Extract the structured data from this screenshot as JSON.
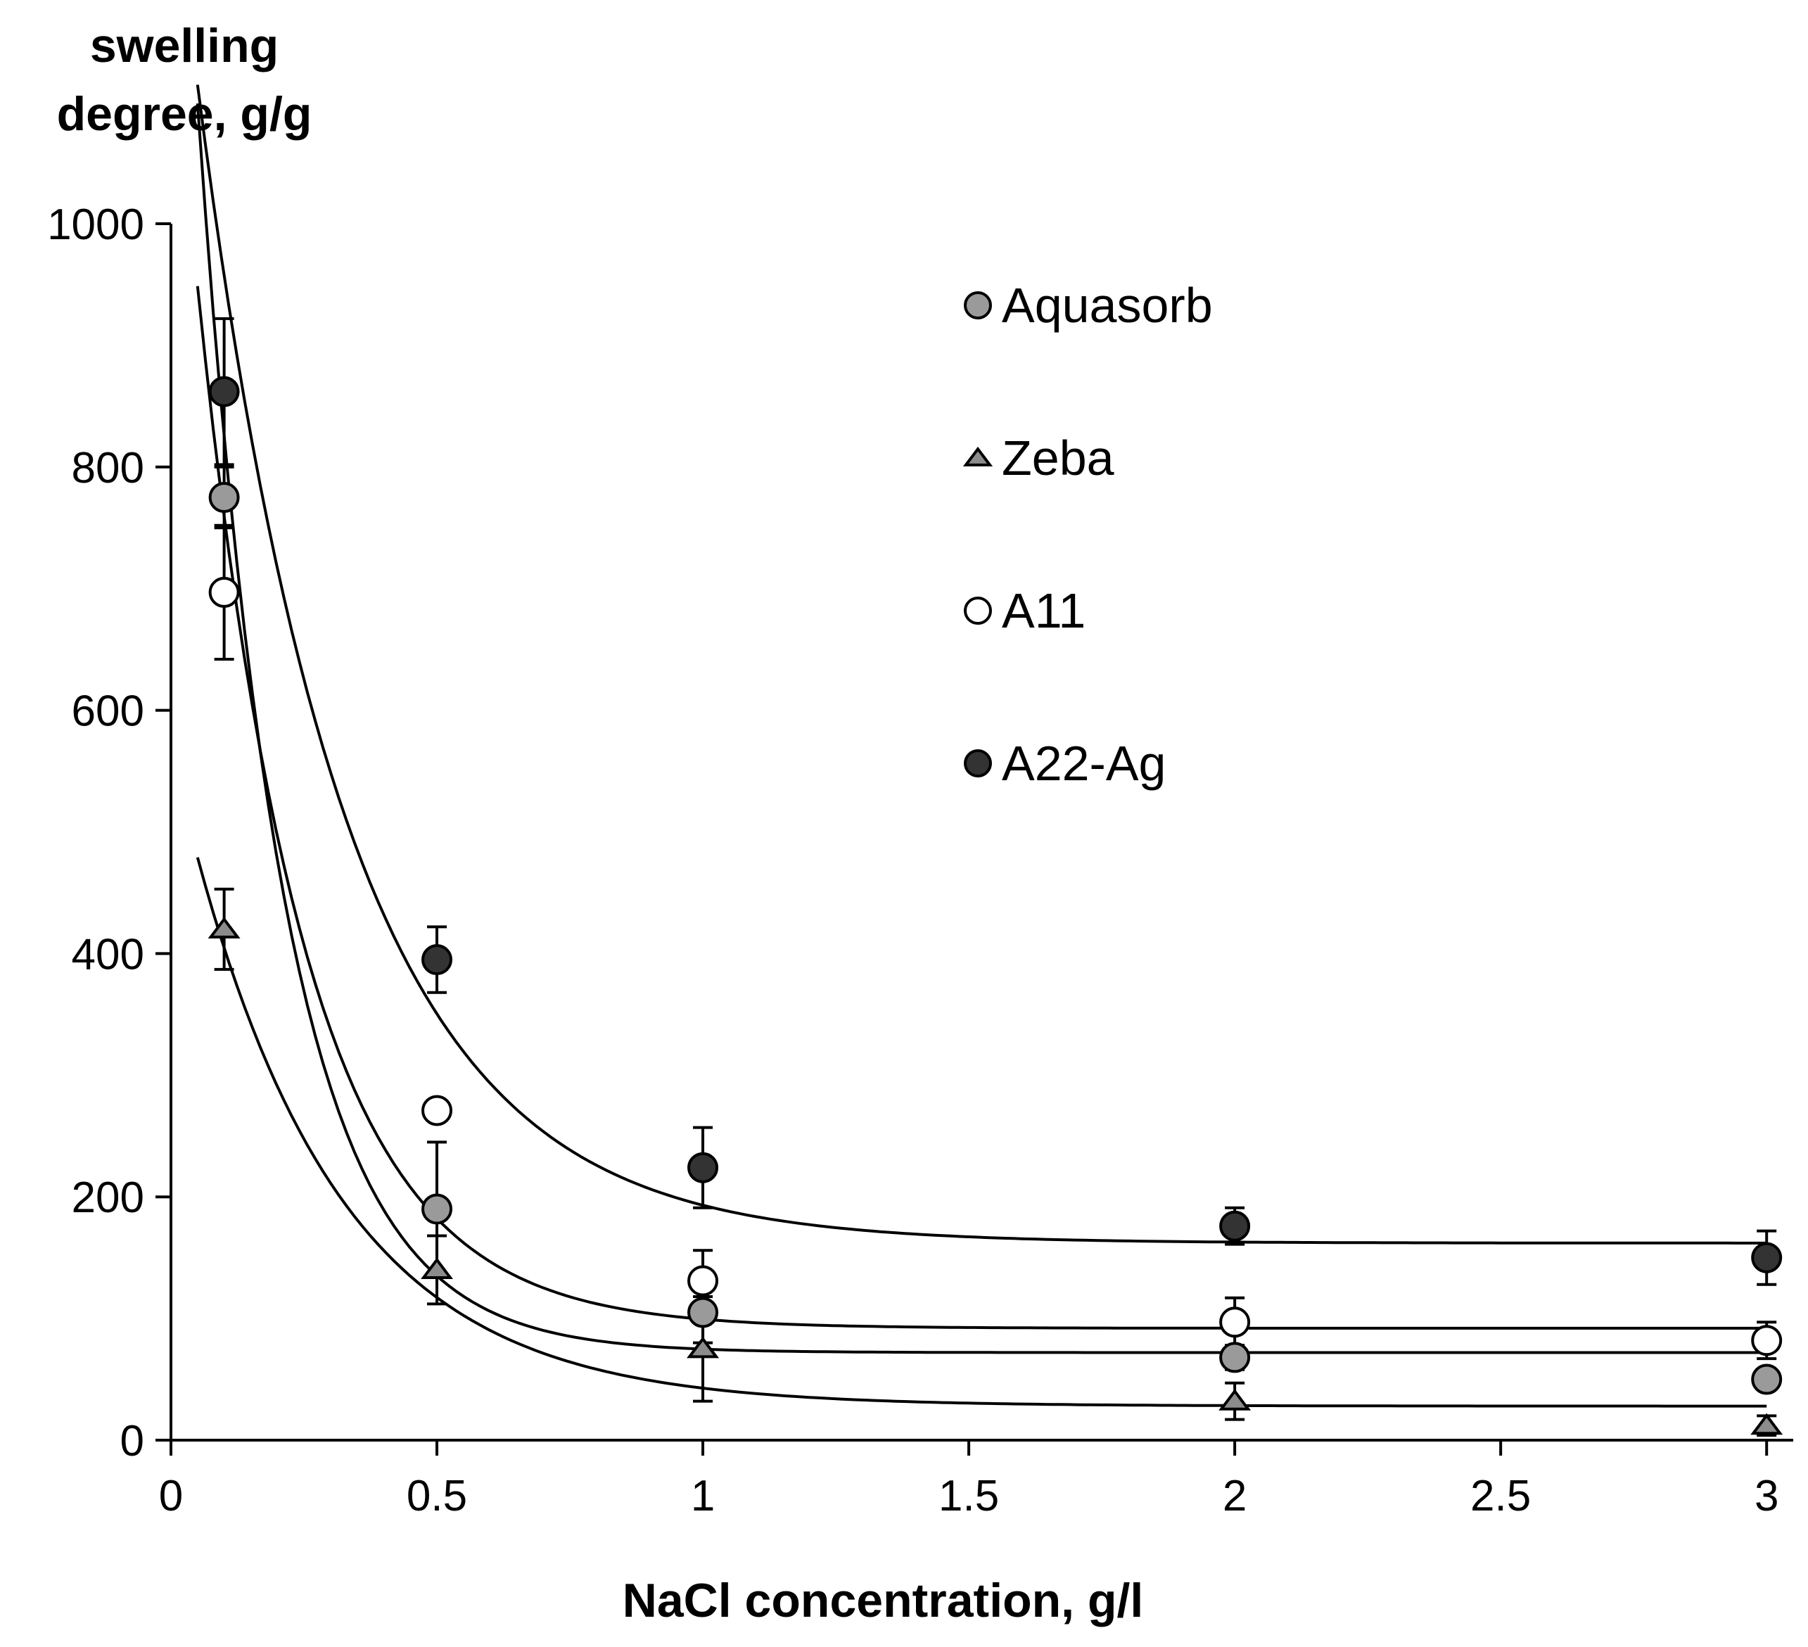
{
  "chart_data": {
    "type": "scatter",
    "title": "",
    "xlabel": "NaCl concentration, g/l",
    "ylabel": "swelling degree, g/g",
    "ylabel_lines": [
      "swelling",
      "degree, g/g"
    ],
    "xlim": [
      0,
      3.05
    ],
    "ylim": [
      0,
      1000
    ],
    "x_ticks": [
      0,
      0.5,
      1,
      1.5,
      2,
      2.5,
      3
    ],
    "x_tick_labels": [
      "0",
      "0.5",
      "1",
      "1.5",
      "2",
      "2.5",
      "3"
    ],
    "y_ticks": [
      0,
      200,
      400,
      600,
      800,
      1000
    ],
    "y_tick_labels": [
      "0",
      "200",
      "400",
      "600",
      "800",
      "1000"
    ],
    "grid": false,
    "legend_position": "top-right",
    "x": [
      0.1,
      0.5,
      1,
      2,
      3
    ],
    "series": [
      {
        "name": "Aquasorb",
        "marker": "circle",
        "fill": "#9a9a9a",
        "values": [
          775,
          190,
          105,
          68,
          50
        ],
        "errors": [
          25,
          55,
          25,
          10,
          8
        ],
        "fit": {
          "a": 1400,
          "k": 6.2,
          "c": 72,
          "x_start": 0.05
        }
      },
      {
        "name": "Zeba",
        "marker": "triangle",
        "fill": "#8c8c8c",
        "values": [
          420,
          140,
          75,
          32,
          12
        ],
        "errors": [
          33,
          28,
          43,
          15,
          8
        ],
        "fit": {
          "a": 540,
          "k": 3.6,
          "c": 28,
          "x_start": 0.05
        }
      },
      {
        "name": "A11",
        "marker": "circle",
        "fill": "#ffffff",
        "values": [
          697,
          271,
          131,
          97,
          82
        ],
        "errors": [
          55,
          0,
          25,
          20,
          15
        ],
        "fit": {
          "a": 1100,
          "k": 5.0,
          "c": 92,
          "x_start": 0.05
        }
      },
      {
        "name": "A22-Ag",
        "marker": "circle",
        "fill": "#333333",
        "values": [
          862,
          395,
          224,
          176,
          150
        ],
        "errors": [
          60,
          27,
          33,
          15,
          22
        ],
        "fit": {
          "a": 1140,
          "k": 3.6,
          "c": 162,
          "x_start": 0.05
        }
      }
    ]
  }
}
